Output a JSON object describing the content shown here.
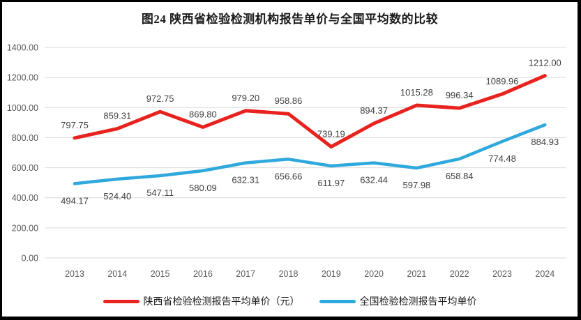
{
  "window": {
    "background": "#ffffff",
    "frame_color": "#000000"
  },
  "chart_data": {
    "type": "line",
    "title": "图24 陕西省检验检测机构报告单价与全国平均数的比较",
    "categories": [
      "2013",
      "2014",
      "2015",
      "2016",
      "2017",
      "2018",
      "2019",
      "2020",
      "2021",
      "2022",
      "2023",
      "2024"
    ],
    "series": [
      {
        "name": "陕西省检验检测报告平均单价（元）",
        "color": "#e8231f",
        "stroke_width": 5,
        "label_position": "above",
        "values": [
          797.75,
          859.31,
          972.75,
          869.8,
          979.2,
          958.86,
          739.19,
          894.37,
          1015.28,
          996.34,
          1089.96,
          1212.0
        ]
      },
      {
        "name": "全国检验检测报告平均单价",
        "color": "#2fa8dd",
        "stroke_width": 4.5,
        "label_position": "below",
        "values": [
          494.17,
          524.4,
          547.11,
          580.09,
          632.31,
          656.66,
          611.97,
          632.44,
          597.98,
          658.84,
          774.48,
          884.93
        ]
      }
    ],
    "xlabel": "",
    "ylabel": "",
    "ylim": [
      0,
      1400
    ],
    "y_step": 200,
    "y_tick_labels": [
      "0.00",
      "200.00",
      "400.00",
      "600.00",
      "800.00",
      "1000.00",
      "1200.00",
      "1400.00"
    ],
    "grid": true,
    "legend_position": "bottom",
    "data_labels": true,
    "label_decimals": 2,
    "axis_text_color": "#595959",
    "data_label_color": "#3f3f3f",
    "gridline_color": "#d9d9d9"
  }
}
